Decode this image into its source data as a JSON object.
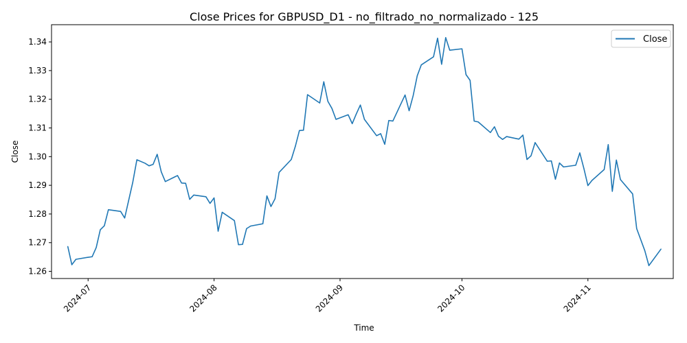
{
  "colors": {
    "line": "#1f77b4",
    "axis": "#000000",
    "legend_border": "#cccccc"
  },
  "chart_data": {
    "type": "line",
    "title": "Close Prices for GBPUSD_D1 - no_filtrado_no_normalizado - 125",
    "xlabel": "Time",
    "ylabel": "Close",
    "grid": false,
    "legend_position": "top-right",
    "xlim": [
      "2024-06-22",
      "2024-11-22"
    ],
    "ylim": [
      1.2575,
      1.346
    ],
    "x_ticks": [
      {
        "date": "2024-07-01",
        "label": "2024-07"
      },
      {
        "date": "2024-08-01",
        "label": "2024-08"
      },
      {
        "date": "2024-09-01",
        "label": "2024-09"
      },
      {
        "date": "2024-10-01",
        "label": "2024-10"
      },
      {
        "date": "2024-11-01",
        "label": "2024-11"
      }
    ],
    "y_ticks": [
      {
        "value": 1.26,
        "label": "1.26"
      },
      {
        "value": 1.27,
        "label": "1.27"
      },
      {
        "value": 1.28,
        "label": "1.28"
      },
      {
        "value": 1.29,
        "label": "1.29"
      },
      {
        "value": 1.3,
        "label": "1.30"
      },
      {
        "value": 1.31,
        "label": "1.31"
      },
      {
        "value": 1.32,
        "label": "1.32"
      },
      {
        "value": 1.33,
        "label": "1.33"
      },
      {
        "value": 1.34,
        "label": "1.34"
      }
    ],
    "series": [
      {
        "name": "Close",
        "points": [
          [
            "2024-06-26",
            1.2687
          ],
          [
            "2024-06-27",
            1.2623
          ],
          [
            "2024-06-28",
            1.2642
          ],
          [
            "2024-07-01",
            1.2649
          ],
          [
            "2024-07-02",
            1.2651
          ],
          [
            "2024-07-03",
            1.2683
          ],
          [
            "2024-07-04",
            1.2745
          ],
          [
            "2024-07-05",
            1.2759
          ],
          [
            "2024-07-06",
            1.2815
          ],
          [
            "2024-07-09",
            1.2809
          ],
          [
            "2024-07-10",
            1.2786
          ],
          [
            "2024-07-12",
            1.2911
          ],
          [
            "2024-07-13",
            1.2989
          ],
          [
            "2024-07-15",
            1.2977
          ],
          [
            "2024-07-16",
            1.2968
          ],
          [
            "2024-07-17",
            1.2973
          ],
          [
            "2024-07-18",
            1.3008
          ],
          [
            "2024-07-19",
            1.2947
          ],
          [
            "2024-07-20",
            1.2913
          ],
          [
            "2024-07-23",
            1.2934
          ],
          [
            "2024-07-24",
            1.2908
          ],
          [
            "2024-07-25",
            1.2907
          ],
          [
            "2024-07-26",
            1.2851
          ],
          [
            "2024-07-27",
            1.2866
          ],
          [
            "2024-07-30",
            1.286
          ],
          [
            "2024-07-31",
            1.2837
          ],
          [
            "2024-08-01",
            1.2856
          ],
          [
            "2024-08-02",
            1.274
          ],
          [
            "2024-08-03",
            1.2806
          ],
          [
            "2024-08-06",
            1.2777
          ],
          [
            "2024-08-07",
            1.2693
          ],
          [
            "2024-08-08",
            1.2694
          ],
          [
            "2024-08-09",
            1.2749
          ],
          [
            "2024-08-10",
            1.2758
          ],
          [
            "2024-08-13",
            1.2766
          ],
          [
            "2024-08-14",
            1.2863
          ],
          [
            "2024-08-15",
            1.2826
          ],
          [
            "2024-08-16",
            1.2853
          ],
          [
            "2024-08-17",
            1.2945
          ],
          [
            "2024-08-20",
            1.299
          ],
          [
            "2024-08-21",
            1.3036
          ],
          [
            "2024-08-22",
            1.3091
          ],
          [
            "2024-08-23",
            1.3092
          ],
          [
            "2024-08-24",
            1.3216
          ],
          [
            "2024-08-27",
            1.3187
          ],
          [
            "2024-08-28",
            1.3261
          ],
          [
            "2024-08-29",
            1.3193
          ],
          [
            "2024-08-30",
            1.3168
          ],
          [
            "2024-08-31",
            1.313
          ],
          [
            "2024-09-03",
            1.3146
          ],
          [
            "2024-09-04",
            1.3115
          ],
          [
            "2024-09-05",
            1.3149
          ],
          [
            "2024-09-06",
            1.318
          ],
          [
            "2024-09-07",
            1.313
          ],
          [
            "2024-09-10",
            1.3073
          ],
          [
            "2024-09-11",
            1.308
          ],
          [
            "2024-09-12",
            1.3043
          ],
          [
            "2024-09-13",
            1.3126
          ],
          [
            "2024-09-14",
            1.3124
          ],
          [
            "2024-09-17",
            1.3215
          ],
          [
            "2024-09-18",
            1.316
          ],
          [
            "2024-09-19",
            1.3213
          ],
          [
            "2024-09-20",
            1.3282
          ],
          [
            "2024-09-21",
            1.332
          ],
          [
            "2024-09-24",
            1.3348
          ],
          [
            "2024-09-25",
            1.3413
          ],
          [
            "2024-09-26",
            1.3322
          ],
          [
            "2024-09-27",
            1.3415
          ],
          [
            "2024-09-28",
            1.3371
          ],
          [
            "2024-10-01",
            1.3376
          ],
          [
            "2024-10-02",
            1.3286
          ],
          [
            "2024-10-03",
            1.3266
          ],
          [
            "2024-10-04",
            1.3124
          ],
          [
            "2024-10-05",
            1.3121
          ],
          [
            "2024-10-08",
            1.3084
          ],
          [
            "2024-10-09",
            1.3104
          ],
          [
            "2024-10-10",
            1.3071
          ],
          [
            "2024-10-11",
            1.306
          ],
          [
            "2024-10-12",
            1.307
          ],
          [
            "2024-10-15",
            1.3061
          ],
          [
            "2024-10-16",
            1.3075
          ],
          [
            "2024-10-17",
            1.299
          ],
          [
            "2024-10-18",
            1.3003
          ],
          [
            "2024-10-19",
            1.3049
          ],
          [
            "2024-10-22",
            1.2984
          ],
          [
            "2024-10-23",
            1.2985
          ],
          [
            "2024-10-24",
            1.2921
          ],
          [
            "2024-10-25",
            1.2978
          ],
          [
            "2024-10-26",
            1.2964
          ],
          [
            "2024-10-29",
            1.297
          ],
          [
            "2024-10-30",
            1.3013
          ],
          [
            "2024-10-31",
            1.2959
          ],
          [
            "2024-11-01",
            1.2899
          ],
          [
            "2024-11-02",
            1.2917
          ],
          [
            "2024-11-05",
            1.2955
          ],
          [
            "2024-11-06",
            1.3042
          ],
          [
            "2024-11-07",
            1.2879
          ],
          [
            "2024-11-08",
            1.2988
          ],
          [
            "2024-11-09",
            1.292
          ],
          [
            "2024-11-12",
            1.287
          ],
          [
            "2024-11-13",
            1.2749
          ],
          [
            "2024-11-15",
            1.2672
          ],
          [
            "2024-11-16",
            1.262
          ],
          [
            "2024-11-19",
            1.2678
          ]
        ]
      }
    ]
  }
}
